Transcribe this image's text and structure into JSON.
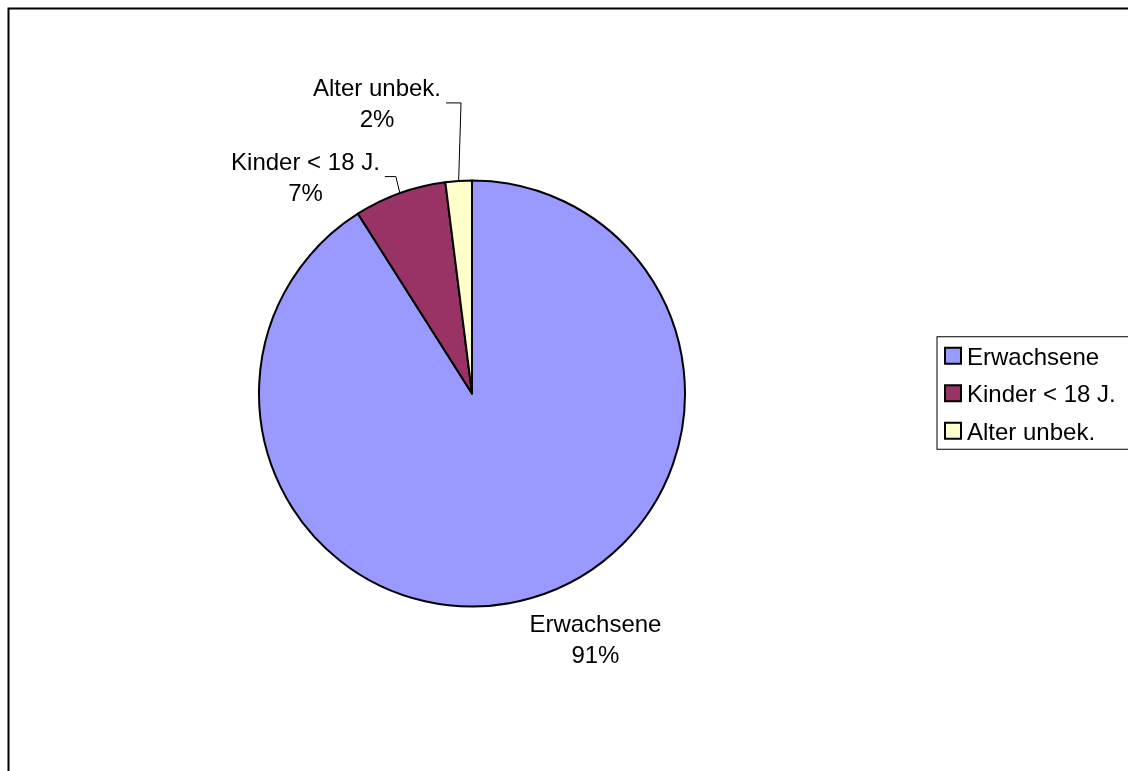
{
  "chart_data": {
    "type": "pie",
    "categories": [
      "Erwachsene",
      "Kinder < 18 J.",
      "Alter unbek."
    ],
    "values": [
      91,
      7,
      2
    ],
    "colors": [
      "#9999ff",
      "#993366",
      "#ffffcc"
    ],
    "value_labels": [
      "91%",
      "7%",
      "2%"
    ],
    "legend": "right"
  }
}
